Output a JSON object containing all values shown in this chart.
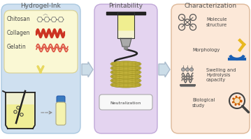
{
  "panel1_outer_bg": "#cfe0f0",
  "panel1_inner_bg": "#faf8d4",
  "panel1_title": "Hydrogel-Ink",
  "panel2_bg": "#e4d4f0",
  "panel2_title": "Printability",
  "panel2_neutralization": "Neutralization",
  "panel3_bg": "#fce8d8",
  "panel3_title": "Characterization",
  "title_color": "#555555",
  "text_color": "#444444",
  "wave_red": "#cc3322",
  "wave_red2": "#dd5544",
  "chitosan_color": "#888888",
  "arrow_fill": "#ccdde8",
  "arrow_edge": "#aabbcc",
  "down_arrow": "#e8d860",
  "beaker_fill": "#f0f0d0",
  "liquid_fill": "#f0ee90",
  "scaffold_fill": "#c8b840",
  "scaffold_edge": "#a09828",
  "petri_fill": "#ffffff",
  "nozzle_fill": "#f5f3d0",
  "nozzle_liquid": "#f0ee90",
  "title_fontsize": 6.5,
  "label_fontsize": 5.5,
  "small_fontsize": 4.5
}
